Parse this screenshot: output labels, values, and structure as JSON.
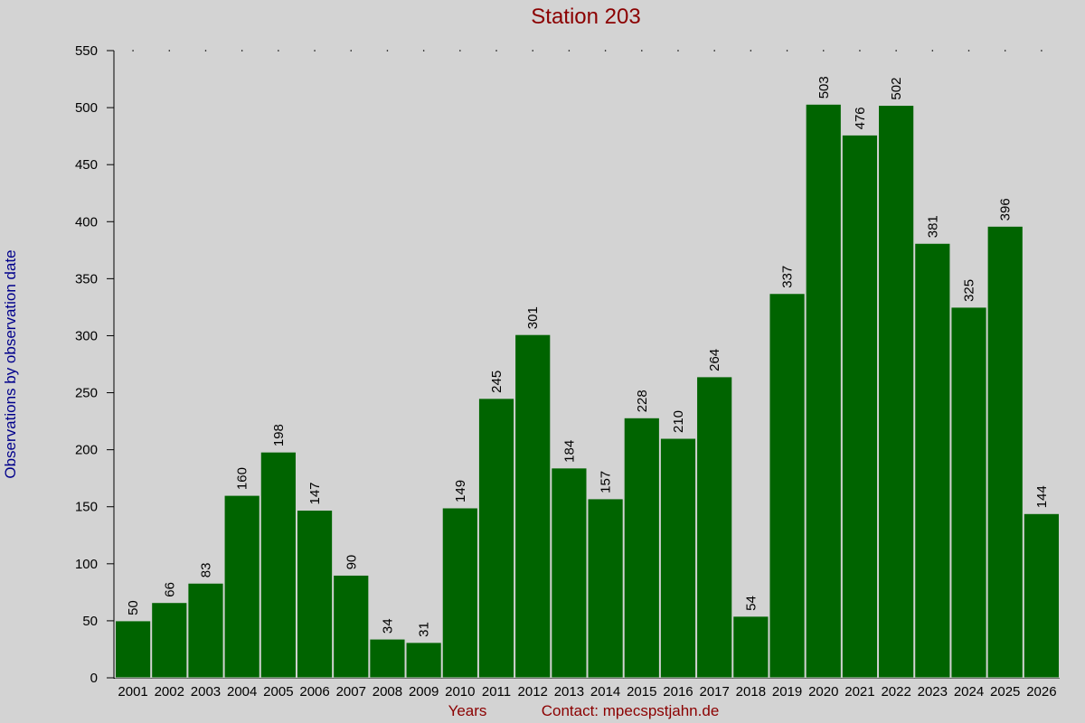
{
  "chart_data": {
    "type": "bar",
    "title": "Station 203",
    "y_label": "Observations by observation date",
    "x_label": "Years",
    "contact": "Contact: mpecspstjahn.de",
    "categories": [
      "2001",
      "2002",
      "2003",
      "2004",
      "2005",
      "2006",
      "2007",
      "2008",
      "2009",
      "2010",
      "2011",
      "2012",
      "2013",
      "2014",
      "2015",
      "2016",
      "2017",
      "2018",
      "2019",
      "2020",
      "2021",
      "2022",
      "2023",
      "2024",
      "2025",
      "2026"
    ],
    "values": [
      50,
      66,
      83,
      160,
      198,
      147,
      90,
      34,
      31,
      149,
      245,
      301,
      184,
      157,
      228,
      210,
      264,
      54,
      337,
      503,
      476,
      502,
      381,
      325,
      396,
      144
    ],
    "color": "#006400",
    "ylim": [
      0,
      550
    ],
    "yticks": [
      0,
      50,
      100,
      150,
      200,
      250,
      300,
      350,
      400,
      450,
      500,
      550
    ]
  }
}
